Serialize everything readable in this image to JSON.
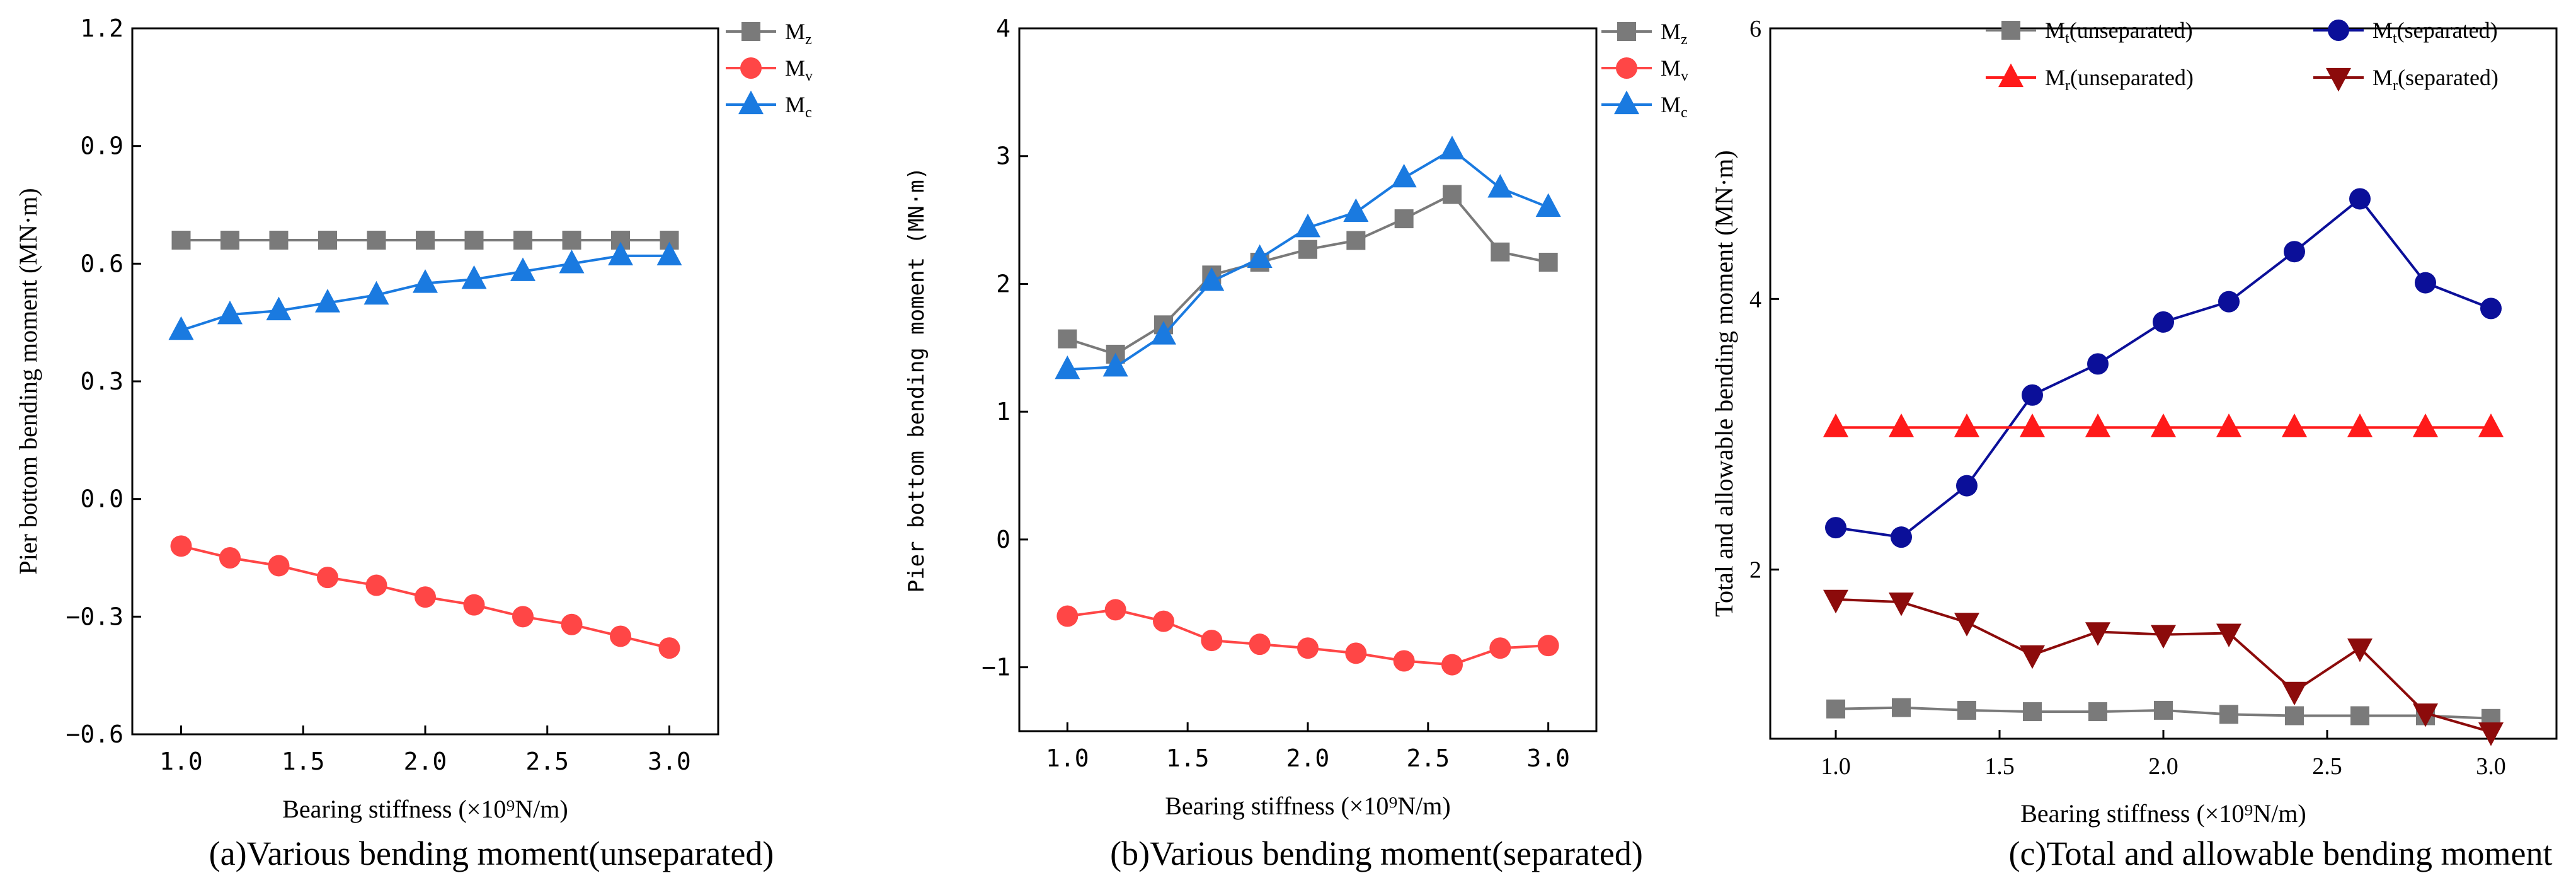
{
  "colors": {
    "gray": "#7a7a7a",
    "red": "#ff4646",
    "blue": "#1a7ae0",
    "navy": "#0b0f99",
    "red_tri": "#ff1a1a",
    "darkred": "#8c0b0b"
  },
  "chart_data": [
    {
      "type": "line",
      "caption": "(a)Various bending moment(unseparated)",
      "xlabel": "Bearing stiffness (×10⁹N/m)",
      "ylabel": "Pier bottom bending moment (MN·m)",
      "xlim": [
        0.8,
        3.2
      ],
      "ylim": [
        -0.6,
        1.2
      ],
      "xticks": [
        1.0,
        1.5,
        2.0,
        2.5,
        3.0
      ],
      "xtick_labels": [
        "1.0",
        "1.5",
        "2.0",
        "2.5",
        "3.0"
      ],
      "yticks": [
        -0.6,
        -0.3,
        0.0,
        0.3,
        0.6,
        0.9,
        1.2
      ],
      "ytick_labels": [
        "−0.6",
        "−0.3",
        "0.0",
        "0.3",
        "0.6",
        "0.9",
        "1.2"
      ],
      "legend_position": "top-right",
      "x": [
        1.0,
        1.2,
        1.4,
        1.6,
        1.8,
        2.0,
        2.2,
        2.4,
        2.6,
        2.8,
        3.0
      ],
      "series": [
        {
          "name": "M",
          "sub": "z",
          "color": "gray",
          "marker": "square",
          "values": [
            0.66,
            0.66,
            0.66,
            0.66,
            0.66,
            0.66,
            0.66,
            0.66,
            0.66,
            0.66,
            0.66
          ]
        },
        {
          "name": "M",
          "sub": "v",
          "color": "red",
          "marker": "circle",
          "values": [
            -0.12,
            -0.15,
            -0.17,
            -0.2,
            -0.22,
            -0.25,
            -0.27,
            -0.3,
            -0.32,
            -0.35,
            -0.38
          ]
        },
        {
          "name": "M",
          "sub": "c",
          "color": "blue",
          "marker": "triangle",
          "values": [
            0.43,
            0.47,
            0.48,
            0.5,
            0.52,
            0.55,
            0.56,
            0.58,
            0.6,
            0.62,
            0.62
          ]
        }
      ]
    },
    {
      "type": "line",
      "caption": "(b)Various bending moment(separated)",
      "xlabel": "Bearing stiffness (×10⁹N/m)",
      "ylabel": "Pier bottom bending moment  (MN·m)",
      "xlim": [
        0.8,
        3.2
      ],
      "ylim": [
        -1.5,
        4.0
      ],
      "xticks": [
        1.0,
        1.5,
        2.0,
        2.5,
        3.0
      ],
      "xtick_labels": [
        "1.0",
        "1.5",
        "2.0",
        "2.5",
        "3.0"
      ],
      "yticks": [
        -1,
        0,
        1,
        2,
        3,
        4
      ],
      "ytick_labels": [
        "−1",
        "0",
        "1",
        "2",
        "3",
        "4"
      ],
      "legend_position": "top-right",
      "x": [
        1.0,
        1.2,
        1.4,
        1.6,
        1.8,
        2.0,
        2.2,
        2.4,
        2.6,
        2.8,
        3.0
      ],
      "series": [
        {
          "name": "M",
          "sub": "z",
          "color": "gray",
          "marker": "square",
          "values": [
            1.57,
            1.45,
            1.68,
            2.07,
            2.17,
            2.27,
            2.34,
            2.51,
            2.7,
            2.25,
            2.17
          ]
        },
        {
          "name": "M",
          "sub": "v",
          "color": "red",
          "marker": "circle",
          "values": [
            -0.6,
            -0.55,
            -0.64,
            -0.79,
            -0.82,
            -0.85,
            -0.89,
            -0.95,
            -0.98,
            -0.85,
            -0.83
          ]
        },
        {
          "name": "M",
          "sub": "c",
          "color": "blue",
          "marker": "triangle",
          "values": [
            1.33,
            1.35,
            1.6,
            2.02,
            2.2,
            2.44,
            2.56,
            2.83,
            3.05,
            2.75,
            2.6
          ]
        }
      ]
    },
    {
      "type": "line",
      "caption": "(c)Total and allowable bending moment",
      "xlabel": "Bearing stiffness (×10⁹N/m)",
      "ylabel": "Total and allowable bending moment (MN·m)",
      "xlim": [
        0.8,
        3.2
      ],
      "ylim": [
        0.75,
        6.0
      ],
      "xticks": [
        1.0,
        1.5,
        2.0,
        2.5,
        3.0
      ],
      "xtick_labels": [
        "1.0",
        "1.5",
        "2.0",
        "2.5",
        "3.0"
      ],
      "yticks": [
        2,
        4,
        6
      ],
      "ytick_labels": [
        "2",
        "4",
        "6"
      ],
      "legend_position": "top",
      "x": [
        1.0,
        1.2,
        1.4,
        1.6,
        1.8,
        2.0,
        2.2,
        2.4,
        2.6,
        2.8,
        3.0
      ],
      "series": [
        {
          "name": "M",
          "sub": "t",
          "suffix": "(unseparated)",
          "color": "gray",
          "marker": "square",
          "values": [
            0.97,
            0.98,
            0.96,
            0.95,
            0.95,
            0.96,
            0.93,
            0.92,
            0.92,
            0.92,
            0.9
          ]
        },
        {
          "name": "M",
          "sub": "t",
          "suffix": "(separated)",
          "color": "navy",
          "marker": "circle",
          "values": [
            2.31,
            2.24,
            2.62,
            3.29,
            3.52,
            3.83,
            3.98,
            4.35,
            4.74,
            4.12,
            3.93
          ]
        },
        {
          "name": "M",
          "sub": "r",
          "suffix": "(unseparated)",
          "color": "red_tri",
          "marker": "triangle",
          "values": [
            3.05,
            3.05,
            3.05,
            3.05,
            3.05,
            3.05,
            3.05,
            3.05,
            3.05,
            3.05,
            3.05
          ]
        },
        {
          "name": "M",
          "sub": "r",
          "suffix": "(separated)",
          "color": "darkred",
          "marker": "triangle-down",
          "values": [
            1.78,
            1.76,
            1.61,
            1.37,
            1.54,
            1.52,
            1.53,
            1.1,
            1.42,
            0.94,
            0.8
          ]
        }
      ]
    }
  ]
}
